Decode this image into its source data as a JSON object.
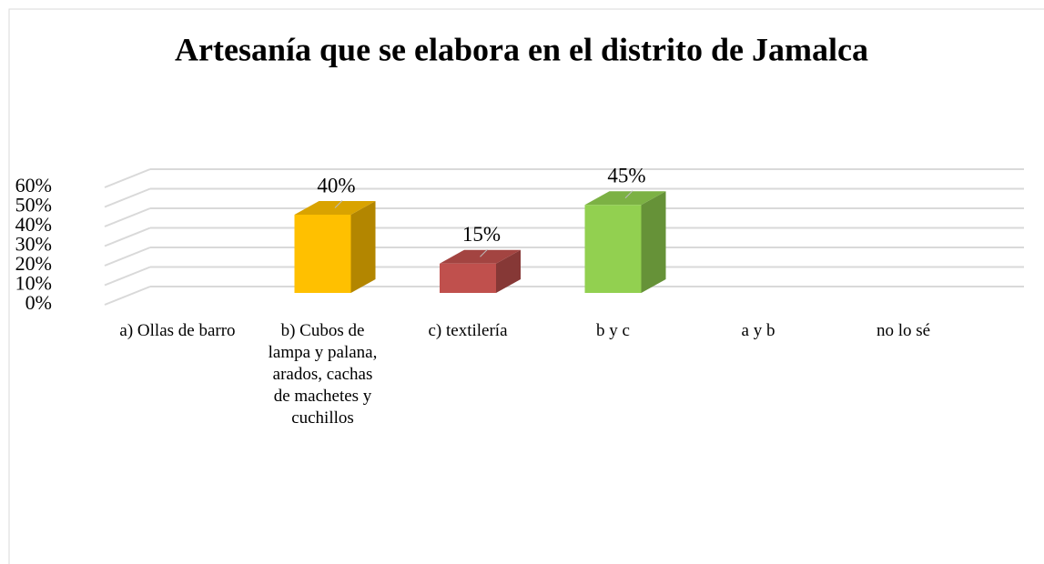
{
  "chart_data": {
    "type": "bar3d",
    "title": "Artesanía que se elabora en el distrito de Jamalca",
    "categories": [
      "a) Ollas de barro",
      "b) Cubos de lampa y palana, arados, cachas de machetes y cuchillos",
      "c) textilería",
      "b y c",
      "a y b",
      "no lo sé"
    ],
    "values": [
      0,
      40,
      15,
      45,
      0,
      0
    ],
    "value_labels": [
      null,
      "40%",
      "15%",
      "45%",
      null,
      null
    ],
    "colors": [
      null,
      "#FFC000",
      "#C0504D",
      "#92D050",
      null,
      null
    ],
    "ylim": [
      0,
      60
    ],
    "yticks": [
      {
        "value": 0,
        "label": "0%"
      },
      {
        "value": 10,
        "label": "10%"
      },
      {
        "value": 20,
        "label": "20%"
      },
      {
        "value": 30,
        "label": "30%"
      },
      {
        "value": 40,
        "label": "40%"
      },
      {
        "value": 50,
        "label": "50%"
      },
      {
        "value": 60,
        "label": "60%"
      }
    ],
    "grid": true
  }
}
